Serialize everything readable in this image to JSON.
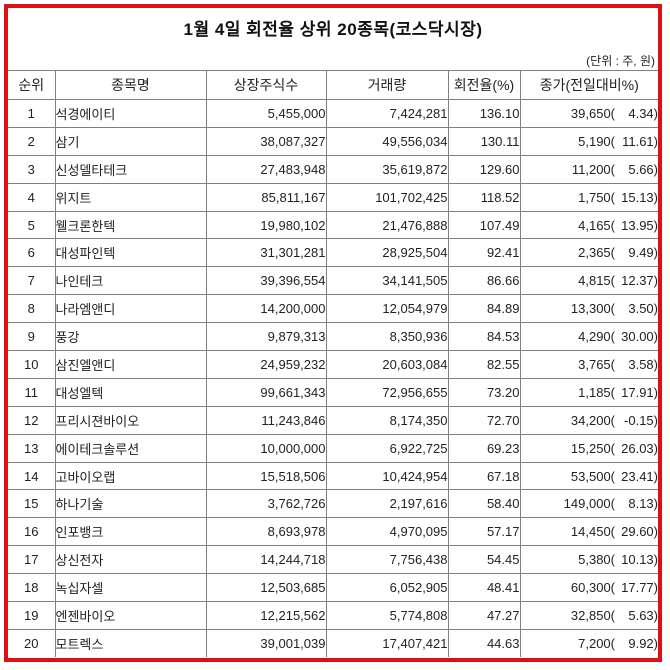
{
  "title": "1월 4일 회전율 상위 20종목(코스닥시장)",
  "unit_note": "(단위 : 주, 원)",
  "colors": {
    "frame_border": "#dd1111",
    "grid_line": "#808080",
    "text": "#222222",
    "background": "#ffffff"
  },
  "table": {
    "headers": [
      "순위",
      "종목명",
      "상장주식수",
      "거래량",
      "회전율(%)",
      "종가(전일대비%)"
    ],
    "rows": [
      {
        "rank": "1",
        "name": "석경에이티",
        "shares": "5,455,000",
        "volume": "7,424,281",
        "turnover": "136.10",
        "close": "39,650(",
        "change": "4.34)"
      },
      {
        "rank": "2",
        "name": "삼기",
        "shares": "38,087,327",
        "volume": "49,556,034",
        "turnover": "130.11",
        "close": "5,190(",
        "change": "11.61)"
      },
      {
        "rank": "3",
        "name": "신성델타테크",
        "shares": "27,483,948",
        "volume": "35,619,872",
        "turnover": "129.60",
        "close": "11,200(",
        "change": "5.66)"
      },
      {
        "rank": "4",
        "name": "위지트",
        "shares": "85,811,167",
        "volume": "101,702,425",
        "turnover": "118.52",
        "close": "1,750(",
        "change": "15.13)"
      },
      {
        "rank": "5",
        "name": "웰크론한텍",
        "shares": "19,980,102",
        "volume": "21,476,888",
        "turnover": "107.49",
        "close": "4,165(",
        "change": "13.95)"
      },
      {
        "rank": "6",
        "name": "대성파인텍",
        "shares": "31,301,281",
        "volume": "28,925,504",
        "turnover": "92.41",
        "close": "2,365(",
        "change": "9.49)"
      },
      {
        "rank": "7",
        "name": "나인테크",
        "shares": "39,396,554",
        "volume": "34,141,505",
        "turnover": "86.66",
        "close": "4,815(",
        "change": "12.37)"
      },
      {
        "rank": "8",
        "name": "나라엠앤디",
        "shares": "14,200,000",
        "volume": "12,054,979",
        "turnover": "84.89",
        "close": "13,300(",
        "change": "3.50)"
      },
      {
        "rank": "9",
        "name": "풍강",
        "shares": "9,879,313",
        "volume": "8,350,936",
        "turnover": "84.53",
        "close": "4,290(",
        "change": "30.00)"
      },
      {
        "rank": "10",
        "name": "삼진엘앤디",
        "shares": "24,959,232",
        "volume": "20,603,084",
        "turnover": "82.55",
        "close": "3,765(",
        "change": "3.58)"
      },
      {
        "rank": "11",
        "name": "대성엘텍",
        "shares": "99,661,343",
        "volume": "72,956,655",
        "turnover": "73.20",
        "close": "1,185(",
        "change": "17.91)"
      },
      {
        "rank": "12",
        "name": "프리시젼바이오",
        "shares": "11,243,846",
        "volume": "8,174,350",
        "turnover": "72.70",
        "close": "34,200(",
        "change": "-0.15)"
      },
      {
        "rank": "13",
        "name": "에이테크솔루션",
        "shares": "10,000,000",
        "volume": "6,922,725",
        "turnover": "69.23",
        "close": "15,250(",
        "change": "26.03)"
      },
      {
        "rank": "14",
        "name": "고바이오랩",
        "shares": "15,518,506",
        "volume": "10,424,954",
        "turnover": "67.18",
        "close": "53,500(",
        "change": "23.41)"
      },
      {
        "rank": "15",
        "name": "하나기술",
        "shares": "3,762,726",
        "volume": "2,197,616",
        "turnover": "58.40",
        "close": "149,000(",
        "change": "8.13)"
      },
      {
        "rank": "16",
        "name": "인포뱅크",
        "shares": "8,693,978",
        "volume": "4,970,095",
        "turnover": "57.17",
        "close": "14,450(",
        "change": "29.60)"
      },
      {
        "rank": "17",
        "name": "상신전자",
        "shares": "14,244,718",
        "volume": "7,756,438",
        "turnover": "54.45",
        "close": "5,380(",
        "change": "10.13)"
      },
      {
        "rank": "18",
        "name": "녹십자셀",
        "shares": "12,503,685",
        "volume": "6,052,905",
        "turnover": "48.41",
        "close": "60,300(",
        "change": "17.77)"
      },
      {
        "rank": "19",
        "name": "엔젠바이오",
        "shares": "12,215,562",
        "volume": "5,774,808",
        "turnover": "47.27",
        "close": "32,850(",
        "change": "5.63)"
      },
      {
        "rank": "20",
        "name": "모트렉스",
        "shares": "39,001,039",
        "volume": "17,407,421",
        "turnover": "44.63",
        "close": "7,200(",
        "change": "9.92)"
      }
    ]
  },
  "chart_data": {
    "type": "table",
    "title": "1월 4일 회전율 상위 20종목(코스닥시장)",
    "unit_note": "(단위 : 주, 원)",
    "columns": [
      "순위",
      "종목명",
      "상장주식수",
      "거래량",
      "회전율(%)",
      "종가",
      "전일대비(%)"
    ],
    "rows": [
      [
        1,
        "석경에이티",
        5455000,
        7424281,
        136.1,
        39650,
        4.34
      ],
      [
        2,
        "삼기",
        38087327,
        49556034,
        130.11,
        5190,
        11.61
      ],
      [
        3,
        "신성델타테크",
        27483948,
        35619872,
        129.6,
        11200,
        5.66
      ],
      [
        4,
        "위지트",
        85811167,
        101702425,
        118.52,
        1750,
        15.13
      ],
      [
        5,
        "웰크론한텍",
        19980102,
        21476888,
        107.49,
        4165,
        13.95
      ],
      [
        6,
        "대성파인텍",
        31301281,
        28925504,
        92.41,
        2365,
        9.49
      ],
      [
        7,
        "나인테크",
        39396554,
        34141505,
        86.66,
        4815,
        12.37
      ],
      [
        8,
        "나라엠앤디",
        14200000,
        12054979,
        84.89,
        13300,
        3.5
      ],
      [
        9,
        "풍강",
        9879313,
        8350936,
        84.53,
        4290,
        30.0
      ],
      [
        10,
        "삼진엘앤디",
        24959232,
        20603084,
        82.55,
        3765,
        3.58
      ],
      [
        11,
        "대성엘텍",
        99661343,
        72956655,
        73.2,
        1185,
        17.91
      ],
      [
        12,
        "프리시젼바이오",
        11243846,
        8174350,
        72.7,
        34200,
        -0.15
      ],
      [
        13,
        "에이테크솔루션",
        10000000,
        6922725,
        69.23,
        15250,
        26.03
      ],
      [
        14,
        "고바이오랩",
        15518506,
        10424954,
        67.18,
        53500,
        23.41
      ],
      [
        15,
        "하나기술",
        3762726,
        2197616,
        58.4,
        149000,
        8.13
      ],
      [
        16,
        "인포뱅크",
        8693978,
        4970095,
        57.17,
        14450,
        29.6
      ],
      [
        17,
        "상신전자",
        14244718,
        7756438,
        54.45,
        5380,
        10.13
      ],
      [
        18,
        "녹십자셀",
        12503685,
        6052905,
        48.41,
        60300,
        17.77
      ],
      [
        19,
        "엔젠바이오",
        12215562,
        5774808,
        47.27,
        32850,
        5.63
      ],
      [
        20,
        "모트렉스",
        39001039,
        17407421,
        44.63,
        7200,
        9.92
      ]
    ]
  }
}
